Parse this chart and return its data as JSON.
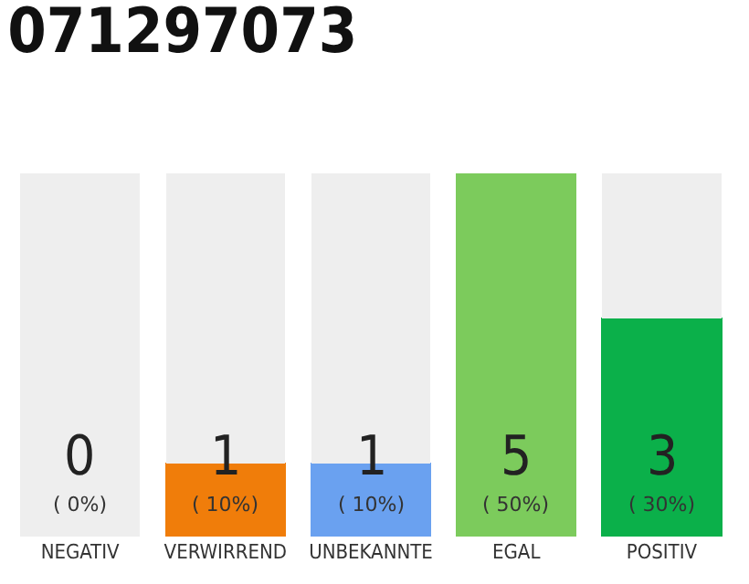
{
  "chart_data": {
    "type": "bar",
    "title": "071297073",
    "stacked": true,
    "categories": [
      "NEGATIV",
      "VERWIRREND",
      "UNBEKANNTE",
      "EGAL",
      "POSITIV"
    ],
    "series": [
      {
        "values": [
          0,
          1,
          1,
          5,
          3
        ],
        "colors": [
          "#555555",
          "#f07d0a",
          "#6aa1f0",
          "#7ccb5c",
          "#0bb04a"
        ],
        "value_labels": [
          "0",
          "1",
          "1",
          "5",
          "3"
        ]
      },
      {
        "values": [
          5,
          4,
          4,
          0,
          2
        ],
        "color": "#eeeeee",
        "value_labels": [
          null,
          null,
          null,
          null,
          null
        ]
      }
    ],
    "tick_labels": "x",
    "annotations": [
      "( 0%)",
      "( 10%)",
      "( 10%)",
      "( 50%)",
      "( 30%)"
    ]
  }
}
